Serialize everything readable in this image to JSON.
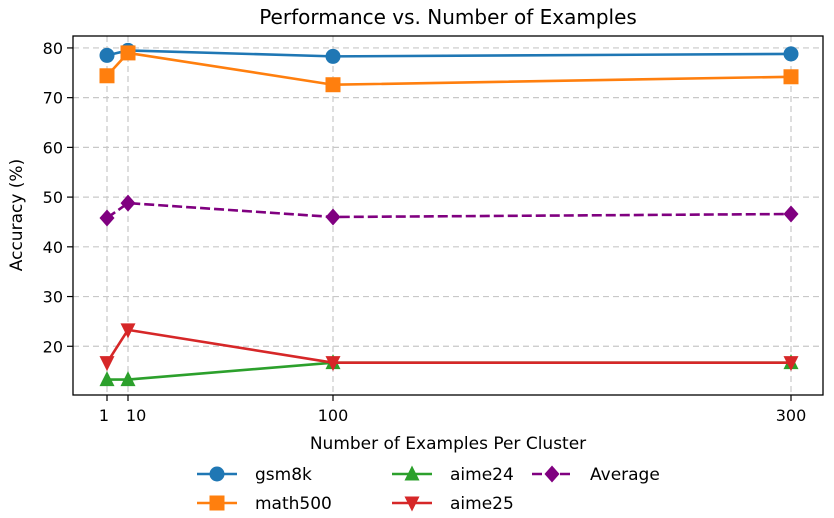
{
  "chart_data": {
    "type": "line",
    "title": "Performance vs. Number of Examples",
    "xlabel": "Number of Examples Per Cluster",
    "ylabel": "Accuracy (%)",
    "x": [
      1,
      10,
      100,
      300
    ],
    "x_tick_labels": [
      "1",
      "10",
      "100",
      "300"
    ],
    "y_ticks": [
      20,
      30,
      40,
      50,
      60,
      70,
      80
    ],
    "ylim": [
      10.2,
      82.4
    ],
    "grid": true,
    "legend_position": "bottom-center",
    "series": [
      {
        "name": "gsm8k",
        "values": [
          78.5,
          79.5,
          78.3,
          78.8
        ],
        "color": "#1f77b4",
        "marker": "circle",
        "dash": "solid"
      },
      {
        "name": "math500",
        "values": [
          74.4,
          79.0,
          72.6,
          74.2
        ],
        "color": "#ff7f0e",
        "marker": "square",
        "dash": "solid"
      },
      {
        "name": "aime24",
        "values": [
          13.3,
          13.3,
          16.7,
          16.7
        ],
        "color": "#2ca02c",
        "marker": "triangle-up",
        "dash": "solid"
      },
      {
        "name": "aime25",
        "values": [
          16.7,
          23.3,
          16.7,
          16.7
        ],
        "color": "#d62728",
        "marker": "triangle-down",
        "dash": "solid"
      },
      {
        "name": "Average",
        "values": [
          45.8,
          48.8,
          46.0,
          46.6
        ],
        "color": "#800080",
        "marker": "diamond",
        "dash": "dashed"
      }
    ]
  }
}
